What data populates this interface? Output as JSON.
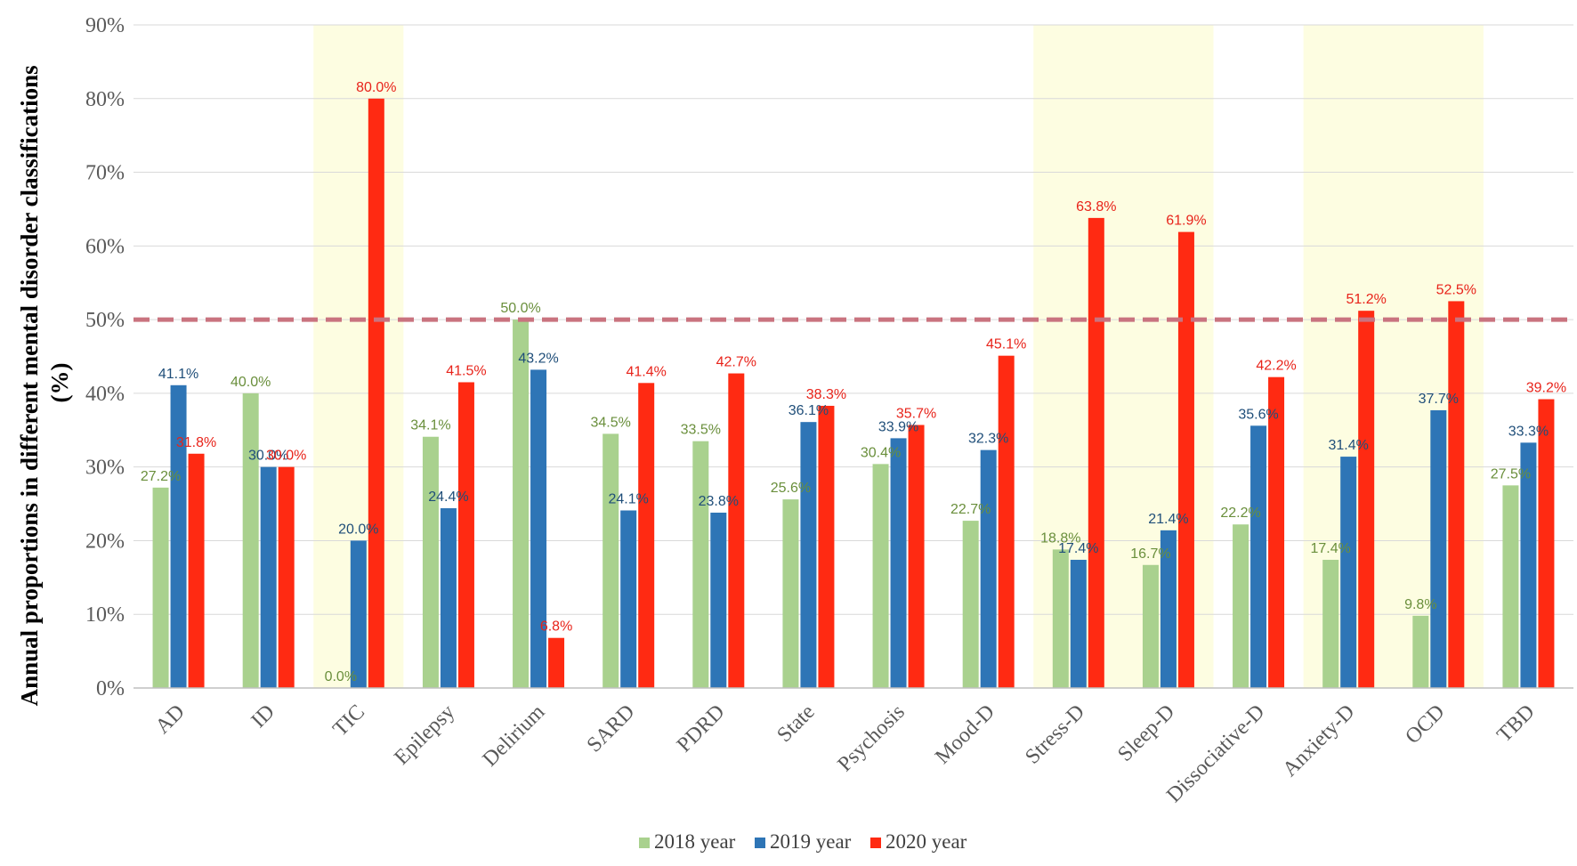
{
  "chart_data": {
    "type": "bar",
    "ylabel_line1": "Annual proportions in different mental disorder classifications",
    "ylabel_line2": "(%)",
    "ylim": [
      0,
      90
    ],
    "yticks": [
      "0%",
      "10%",
      "20%",
      "30%",
      "40%",
      "50%",
      "60%",
      "70%",
      "80%",
      "90%"
    ],
    "threshold": 50,
    "categories": [
      "AD",
      "ID",
      "TIC",
      "Epilepsy",
      "Delirium",
      "SARD",
      "PDRD",
      "State",
      "Psychosis",
      "Mood-D",
      "Stress-D",
      "Sleep-D",
      "Dissociative-D",
      "Anxiety-D",
      "OCD",
      "TBD"
    ],
    "highlighted_categories": [
      "TIC",
      "Stress-D",
      "Sleep-D",
      "Anxiety-D",
      "OCD"
    ],
    "series": [
      {
        "name": "2018 year",
        "color": "#a9d18e",
        "label_color": "#6a8f3c",
        "values": [
          27.2,
          40.0,
          0.0,
          34.1,
          50.0,
          34.5,
          33.5,
          25.6,
          30.4,
          22.7,
          18.8,
          16.7,
          22.2,
          17.4,
          9.8,
          27.5
        ],
        "labels": [
          "27.2%",
          "40.0%",
          "0.0%",
          "34.1%",
          "50.0%",
          "34.5%",
          "33.5%",
          "25.6%",
          "30.4%",
          "22.7%",
          "18.8%",
          "16.7%",
          "22.2%",
          "17.4%",
          "9.8%",
          "27.5%"
        ]
      },
      {
        "name": "2019 year",
        "color": "#2e75b6",
        "label_color": "#1f4e79",
        "values": [
          41.1,
          30.0,
          20.0,
          24.4,
          43.2,
          24.1,
          23.8,
          36.1,
          33.9,
          32.3,
          17.4,
          21.4,
          35.6,
          31.4,
          37.7,
          33.3
        ],
        "labels": [
          "41.1%",
          "30.0%",
          "20.0%",
          "24.4%",
          "43.2%",
          "24.1%",
          "23.8%",
          "36.1%",
          "33.9%",
          "32.3%",
          "17.4%",
          "21.4%",
          "35.6%",
          "31.4%",
          "37.7%",
          "33.3%"
        ]
      },
      {
        "name": "2020 year",
        "color": "#ff2a12",
        "label_color": "#e8231a",
        "values": [
          31.8,
          30.0,
          80.0,
          41.5,
          6.8,
          41.4,
          42.7,
          38.3,
          35.7,
          45.1,
          63.8,
          61.9,
          42.2,
          51.2,
          52.5,
          39.2
        ],
        "labels": [
          "31.8%",
          "30.0%",
          "80.0%",
          "41.5%",
          "6.8%",
          "41.4%",
          "42.7%",
          "38.3%",
          "35.7%",
          "45.1%",
          "63.8%",
          "61.9%",
          "42.2%",
          "51.2%",
          "52.5%",
          "39.2%"
        ]
      }
    ],
    "colors": {
      "highlight": "#fdfde1",
      "threshold_line": "#c9737f",
      "grid": "#d9d9d9",
      "axis": "#bfbfbf"
    }
  }
}
